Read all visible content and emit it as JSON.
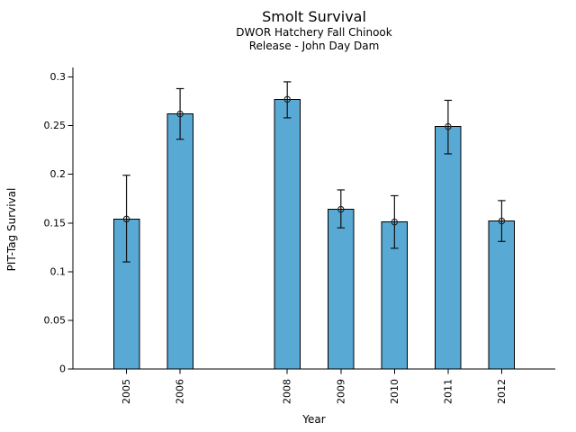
{
  "chart_data": {
    "type": "bar",
    "title": "Smolt Survival",
    "subtitle": [
      "DWOR Hatchery Fall Chinook",
      "Release - John Day Dam"
    ],
    "xlabel": "Year",
    "ylabel": "PIT-Tag Survival",
    "categories": [
      "2005",
      "2006",
      "2008",
      "2009",
      "2010",
      "2011",
      "2012"
    ],
    "x": [
      2005,
      2006,
      2008,
      2009,
      2010,
      2011,
      2012
    ],
    "values": [
      0.154,
      0.262,
      0.277,
      0.164,
      0.151,
      0.249,
      0.152
    ],
    "error_low": [
      0.11,
      0.236,
      0.258,
      0.145,
      0.124,
      0.221,
      0.131
    ],
    "error_high": [
      0.199,
      0.288,
      0.295,
      0.184,
      0.178,
      0.276,
      0.173
    ],
    "xlim": [
      2004,
      2013
    ],
    "ylim": [
      0,
      0.3
    ],
    "yticks": [
      0,
      0.05,
      0.1,
      0.15,
      0.2,
      0.25,
      0.3
    ],
    "ytick_labels": [
      "0",
      "0.05",
      "0.1",
      "0.15",
      "0.2",
      "0.25",
      "0.3"
    ],
    "grid": false,
    "legend": null,
    "marker": "open-circle",
    "bar_color": "#58a9d4",
    "bar_edge_color": "#000000",
    "error_bar_color": "#111111",
    "axis_color": "#000000",
    "text_color": "#000000"
  }
}
